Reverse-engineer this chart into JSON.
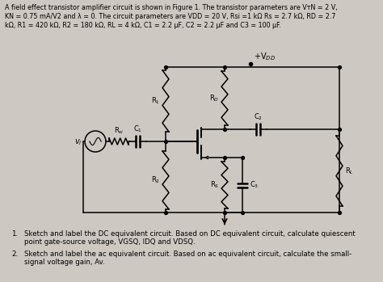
{
  "bg_color": "#cdc8c2",
  "figsize": [
    4.74,
    3.49
  ],
  "dpi": 100,
  "header_line1": "A field effect transistor amplifier circuit is shown in Figure 1. The transistor parameters are VᴛN = 2 V,",
  "header_line2": "KN = 0.75 mA/V2 and λ = 0. The circuit parameters are VDD = 20 V, Rsi =1 kΩ Rs = 2.7 kΩ, RD = 2.7",
  "header_line3": "kΩ, R1 = 420 kΩ, R2 = 180 kΩ, RL = 4 kΩ, C1 = 2.2 μF, C2 = 2.2 μF and C3 = 100 μF.",
  "item1_num": "1.",
  "item1_text": "Sketch and label the DC equivalent circuit. Based on DC equivalent circuit, calculate quiescent\npoint gate-source voltage, VGSQ, IDQ and VDSQ.",
  "item2_num": "2.",
  "item2_text": "Sketch and label the ac equivalent circuit. Based on ac equivalent circuit, calculate the small-\nsignal voltage gain, Av."
}
